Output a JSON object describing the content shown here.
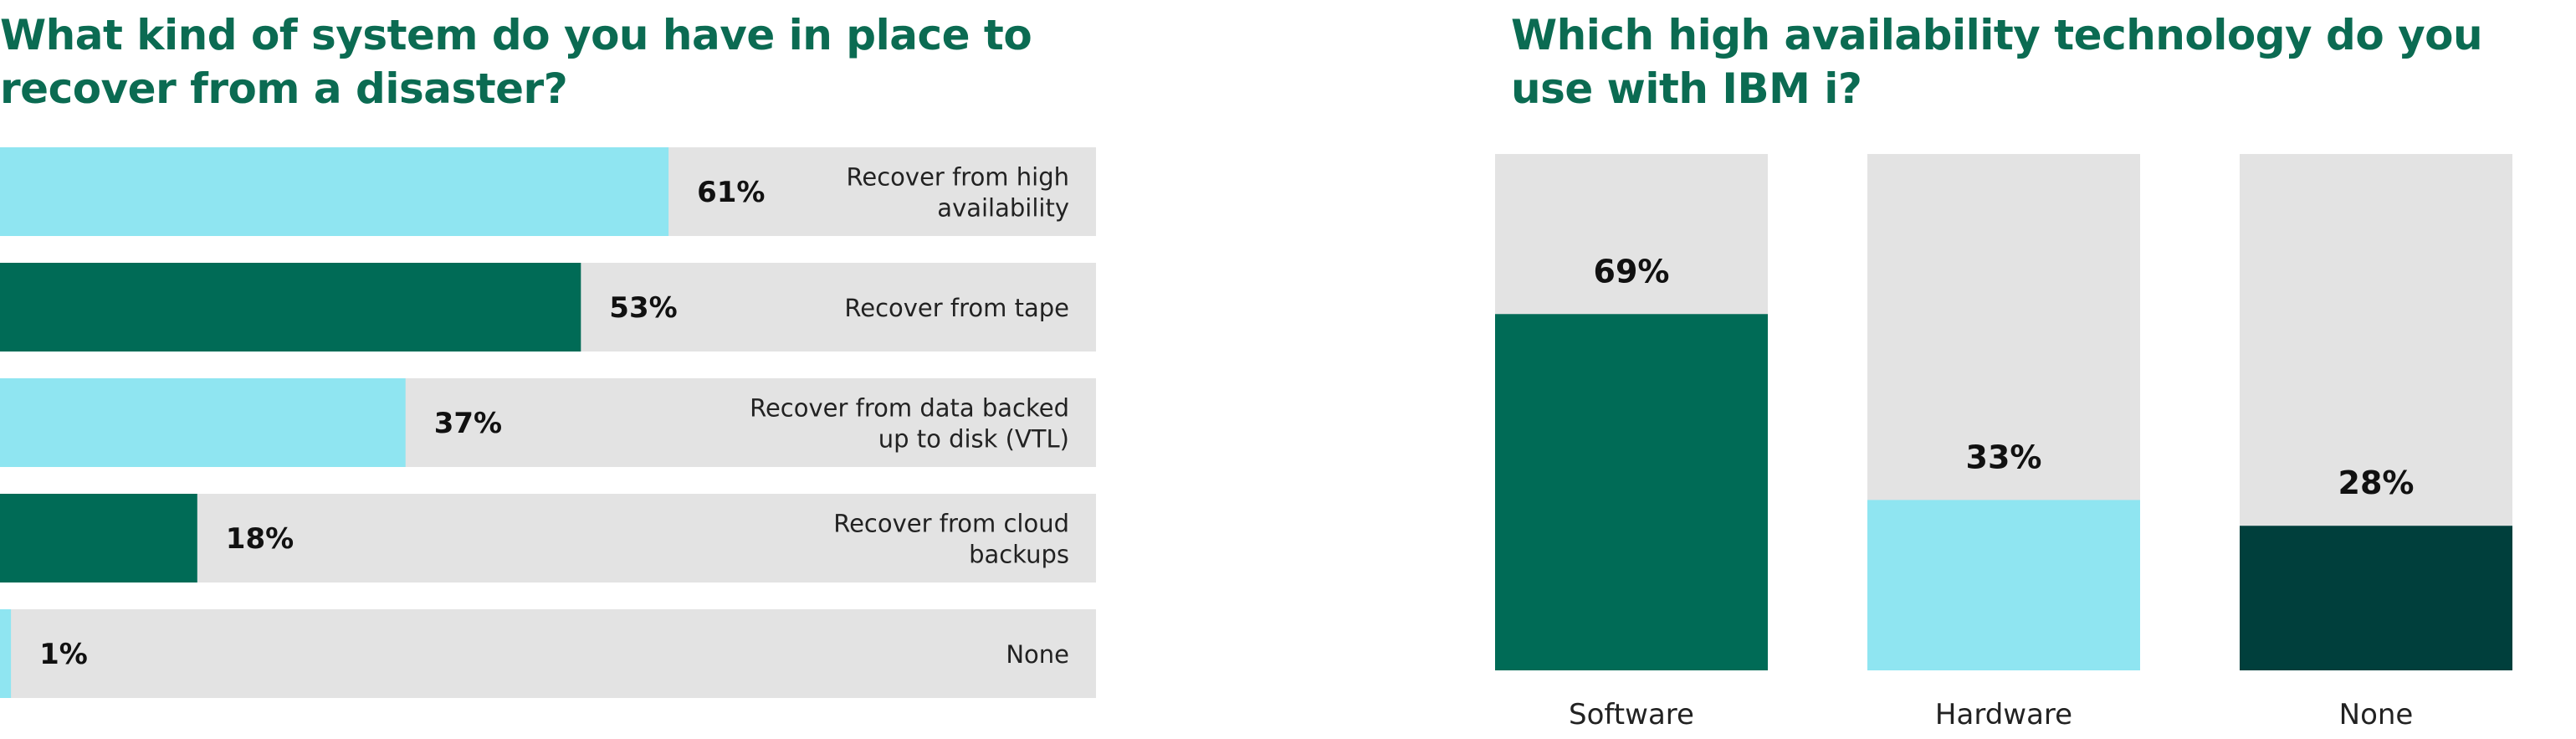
{
  "chart_data": [
    {
      "type": "bar",
      "orientation": "horizontal",
      "title": "What kind of system do you have in place to recover from a disaster?",
      "categories": [
        [
          "Recover from high",
          "availability"
        ],
        [
          "Recover from tape"
        ],
        [
          "Recover from data backed",
          "up to disk (VTL)"
        ],
        [
          "Recover from cloud",
          "backups"
        ],
        [
          "None"
        ]
      ],
      "values": [
        61,
        53,
        37,
        18,
        1
      ],
      "value_labels": [
        "61%",
        "53%",
        "37%",
        "18%",
        "1%"
      ],
      "bar_colors": [
        "#8fe5f1",
        "#006b56",
        "#8fe5f1",
        "#006b56",
        "#8fe5f1"
      ],
      "track_color": "#e3e3e3",
      "xlim": [
        0,
        100
      ]
    },
    {
      "type": "bar",
      "orientation": "vertical",
      "title": "Which high availability technology do you use with IBM i?",
      "categories": [
        "Software",
        "Hardware",
        "None"
      ],
      "values": [
        69,
        33,
        28
      ],
      "value_labels": [
        "69%",
        "33%",
        "28%"
      ],
      "bar_colors": [
        "#006b56",
        "#8fe5f1",
        "#003f3c"
      ],
      "track_color": "#e3e3e3",
      "ylim": [
        0,
        100
      ]
    }
  ]
}
